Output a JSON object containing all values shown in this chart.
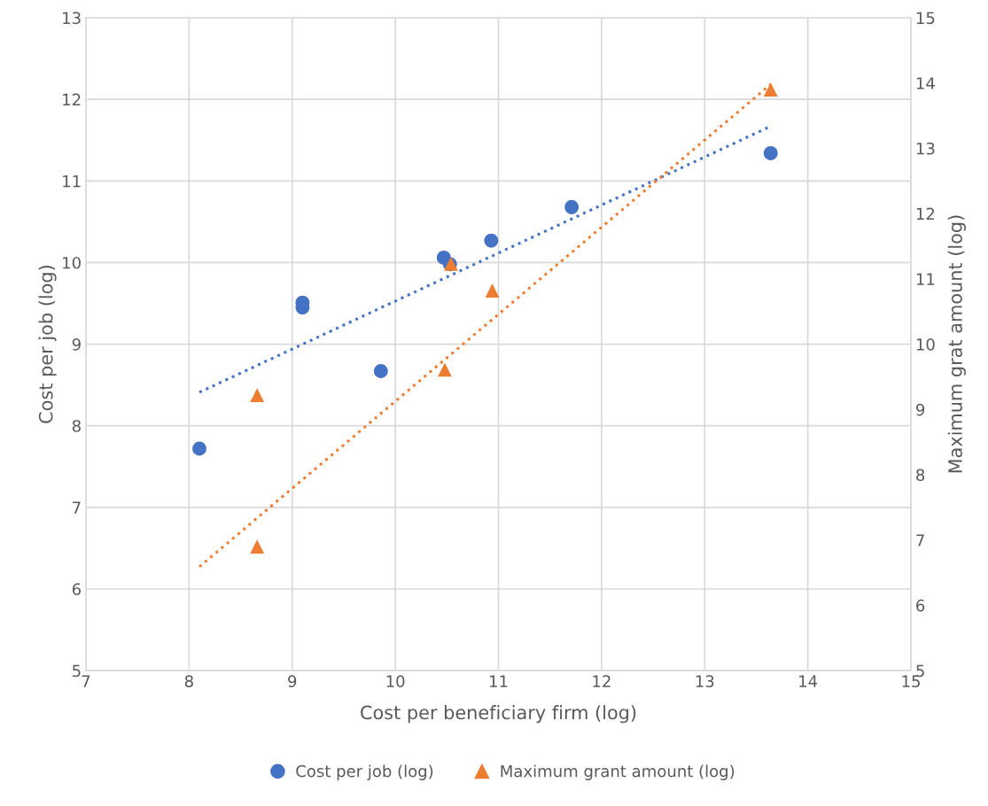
{
  "chart_data": {
    "type": "scatter",
    "xlabel": "Cost per beneficiary firm (log)",
    "ylabel": "Cost per job (log)",
    "y2label": "Maximum grat amount (log)",
    "xlim": [
      7,
      15
    ],
    "xticks": [
      7,
      8,
      9,
      10,
      11,
      12,
      13,
      14,
      15
    ],
    "ylim": [
      5,
      13
    ],
    "yticks": [
      5,
      6,
      7,
      8,
      9,
      10,
      11,
      12,
      13
    ],
    "y2lim": [
      5,
      15
    ],
    "y2ticks": [
      5,
      6,
      7,
      8,
      9,
      10,
      11,
      12,
      13,
      14,
      15
    ],
    "grid": true,
    "legend": "bottom",
    "series": [
      {
        "name": "Cost per job (log)",
        "marker": "circle",
        "color": "#4472c4",
        "x": [
          8.1,
          9.1,
          9.1,
          9.86,
          10.47,
          10.53,
          10.93,
          11.71,
          13.64
        ],
        "values": [
          7.72,
          9.51,
          9.45,
          8.67,
          10.06,
          9.98,
          10.27,
          10.68,
          11.34
        ]
      },
      {
        "name": "Maximum grant amount (log)",
        "marker": "triangle",
        "axis": "y2",
        "color": "#ed7d31",
        "x": [
          8.66,
          8.66,
          10.48,
          10.54,
          10.94,
          13.64
        ],
        "values": [
          9.22,
          6.9,
          9.61,
          11.23,
          10.82,
          13.9
        ]
      },
      {
        "type": "line",
        "line_style": "dotted",
        "color": "#4472c4",
        "x": [
          8.1,
          13.64
        ],
        "values": [
          8.41,
          11.67
        ]
      },
      {
        "type": "line",
        "line_style": "dotted",
        "axis": "y2",
        "color": "#ed7d31",
        "x": [
          8.1,
          13.64
        ],
        "values": [
          6.59,
          13.98
        ]
      }
    ]
  }
}
